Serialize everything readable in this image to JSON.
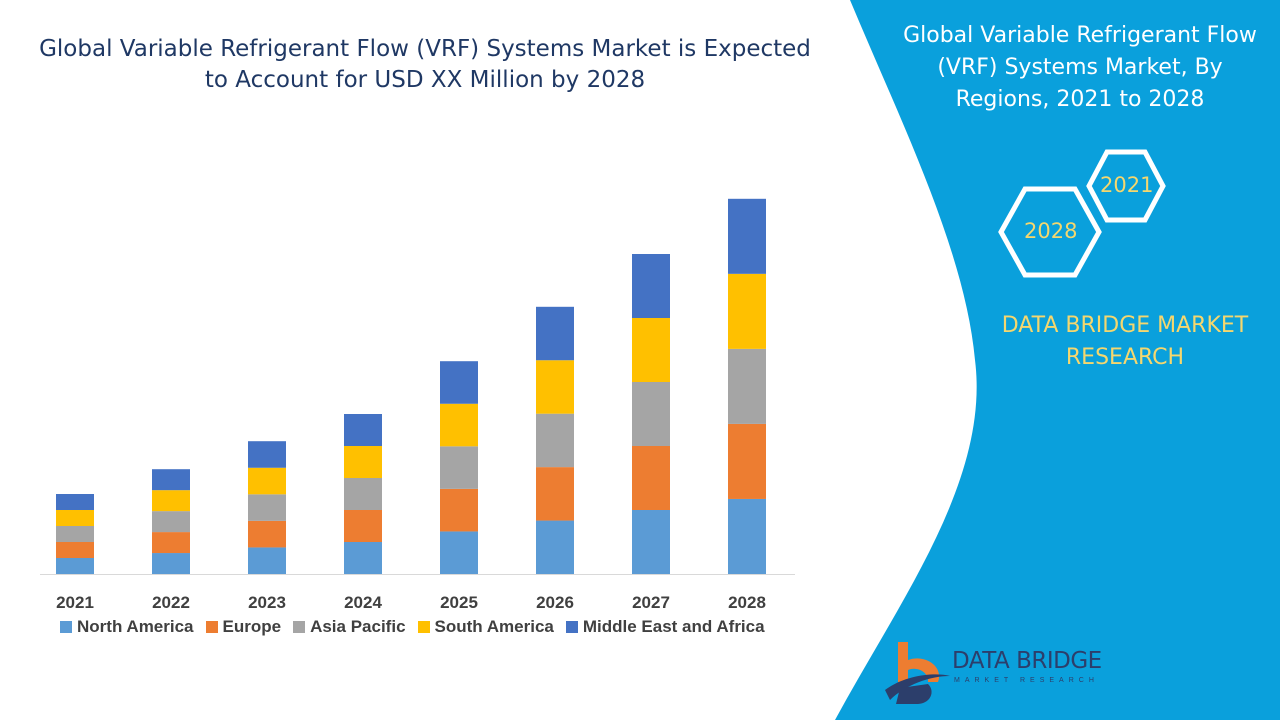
{
  "title": "Global Variable Refrigerant Flow (VRF) Systems Market is Expected to Account for USD XX Million by 2028",
  "side_panel": {
    "title": "Global Variable Refrigerant Flow (VRF) Systems Market, By Regions, 2021 to 2028",
    "hex_start": "2021",
    "hex_end": "2028",
    "brand": "DATA BRIDGE MARKET RESEARCH",
    "logo_name": "DATA BRIDGE",
    "logo_sub": "MARKET RESEARCH",
    "color": "#0aa0dc"
  },
  "chart_data": {
    "type": "bar",
    "stacked": true,
    "title": "",
    "xlabel": "",
    "ylabel": "",
    "ylim": [
      0,
      24
    ],
    "grid": false,
    "legend_position": "bottom",
    "categories": [
      "2021",
      "2022",
      "2023",
      "2024",
      "2025",
      "2026",
      "2027",
      "2028"
    ],
    "series": [
      {
        "name": "North America",
        "color": "#5b9bd5",
        "values": [
          1.0,
          1.31,
          1.66,
          2.0,
          2.66,
          3.34,
          4.0,
          4.69
        ]
      },
      {
        "name": "Europe",
        "color": "#ed7d31",
        "values": [
          1.0,
          1.31,
          1.66,
          2.0,
          2.66,
          3.34,
          4.0,
          4.69
        ]
      },
      {
        "name": "Asia Pacific",
        "color": "#a5a5a5",
        "values": [
          1.0,
          1.31,
          1.66,
          2.0,
          2.66,
          3.34,
          4.0,
          4.69
        ]
      },
      {
        "name": "South America",
        "color": "#ffc000",
        "values": [
          1.0,
          1.31,
          1.66,
          2.0,
          2.66,
          3.34,
          4.0,
          4.69
        ]
      },
      {
        "name": "Middle East and Africa",
        "color": "#4472c4",
        "values": [
          1.0,
          1.31,
          1.66,
          2.0,
          2.66,
          3.34,
          4.0,
          4.69
        ]
      }
    ]
  }
}
